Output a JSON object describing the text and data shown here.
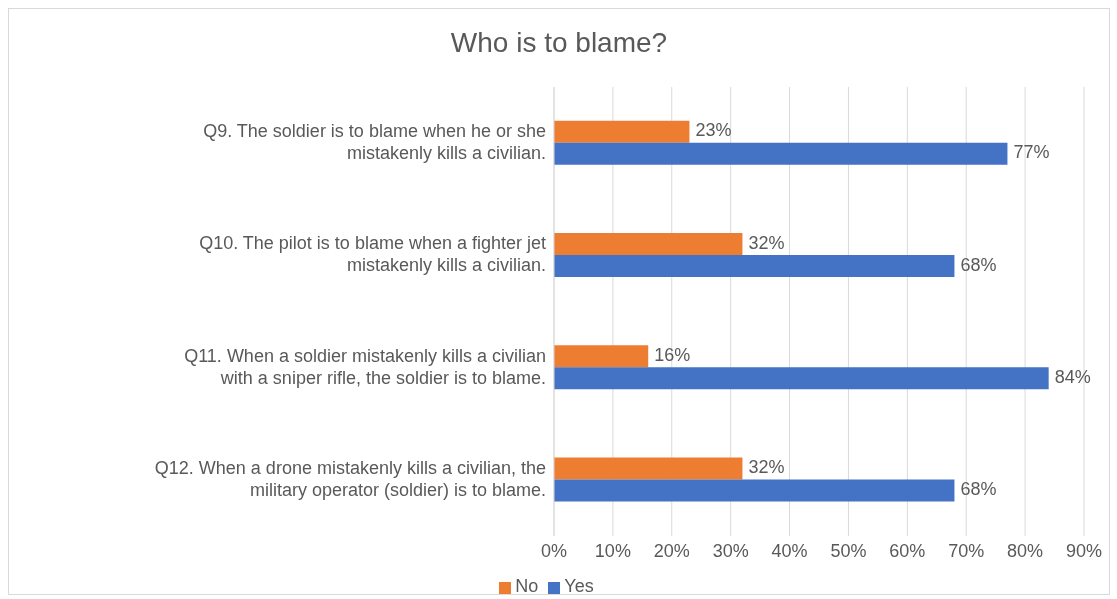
{
  "chart_data": {
    "type": "bar",
    "orientation": "horizontal",
    "title": "Who is to blame?",
    "categories": [
      "Q9. The soldier is to blame when he or she mistakenly kills a civilian.",
      "Q10. The pilot is to blame when a fighter jet mistakenly kills a civilian.",
      "Q11. When a soldier mistakenly kills a civilian with a sniper rifle, the soldier is to blame.",
      "Q12. When a drone mistakenly kills a civilian, the military operator (soldier) is to blame."
    ],
    "series": [
      {
        "name": "No",
        "color": "#ed7d31",
        "values": [
          23,
          32,
          16,
          32
        ],
        "value_labels": [
          "23%",
          "32%",
          "16%",
          "32%"
        ]
      },
      {
        "name": "Yes",
        "color": "#4472c4",
        "values": [
          77,
          68,
          84,
          68
        ],
        "value_labels": [
          "77%",
          "68%",
          "84%",
          "68%"
        ]
      }
    ],
    "xlim": [
      0,
      90
    ],
    "xticks": [
      {
        "value": 0,
        "label": "0%"
      },
      {
        "value": 10,
        "label": "10%"
      },
      {
        "value": 20,
        "label": "20%"
      },
      {
        "value": 30,
        "label": "30%"
      },
      {
        "value": 40,
        "label": "40%"
      },
      {
        "value": 50,
        "label": "50%"
      },
      {
        "value": 60,
        "label": "60%"
      },
      {
        "value": 70,
        "label": "70%"
      },
      {
        "value": 80,
        "label": "80%"
      },
      {
        "value": 90,
        "label": "90%"
      }
    ],
    "grid": "x",
    "legend": "bottom"
  }
}
